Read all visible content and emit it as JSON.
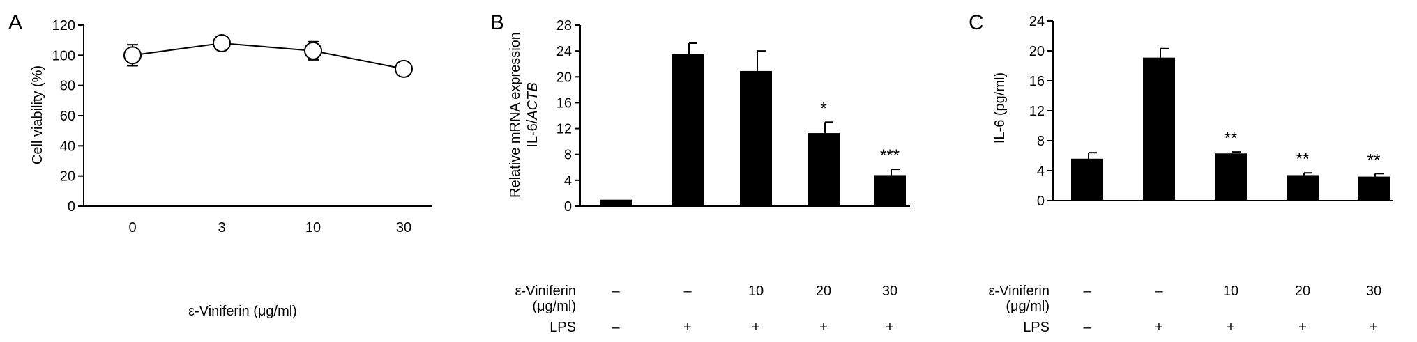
{
  "chart_data": [
    {
      "panel": "A",
      "type": "line",
      "categories": [
        "0",
        "3",
        "10",
        "30"
      ],
      "values": [
        100,
        108,
        103,
        91
      ],
      "errors": [
        7,
        0,
        6,
        0
      ],
      "ylabel": "Cell viability (%)",
      "xlabel": "ε-Viniferin (μg/ml)",
      "ylim": [
        0,
        120
      ],
      "yticks": [
        "0",
        "20",
        "40",
        "60",
        "80",
        "100",
        "120"
      ],
      "marker": "open-circle",
      "color": "#000000"
    },
    {
      "panel": "B",
      "type": "bar",
      "values": [
        1.0,
        23.5,
        20.9,
        11.3,
        4.8
      ],
      "errors": [
        0,
        1.7,
        3.1,
        1.7,
        0.9
      ],
      "annotations": [
        "",
        "",
        "",
        "*",
        "***"
      ],
      "ylabel_line1": "Relative mRNA expression",
      "ylabel_line2_prefix": "IL-6/",
      "ylabel_line2_italic": "ACTB",
      "ylim": [
        0,
        28
      ],
      "yticks": [
        "0",
        "4",
        "8",
        "12",
        "16",
        "20",
        "24",
        "28"
      ],
      "row1_label_line1": "ε-Viniferin",
      "row1_label_line2": "(μg/ml)",
      "row1_values": [
        "–",
        "–",
        "10",
        "20",
        "30"
      ],
      "row2_label": "LPS",
      "row2_values": [
        "–",
        "+",
        "+",
        "+",
        "+"
      ],
      "color": "#000000"
    },
    {
      "panel": "C",
      "type": "bar",
      "values": [
        5.6,
        19.1,
        6.3,
        3.4,
        3.2
      ],
      "errors": [
        0.8,
        1.2,
        0.2,
        0.3,
        0.4
      ],
      "annotations": [
        "",
        "",
        "**",
        "**",
        "**"
      ],
      "ylabel": "IL-6 (pg/ml)",
      "ylim": [
        0,
        24
      ],
      "yticks": [
        "0",
        "4",
        "8",
        "12",
        "16",
        "20",
        "24"
      ],
      "row1_label_line1": "ε-Viniferin",
      "row1_label_line2": "(μg/ml)",
      "row1_values": [
        "–",
        "–",
        "10",
        "20",
        "30"
      ],
      "row2_label": "LPS",
      "row2_values": [
        "–",
        "+",
        "+",
        "+",
        "+"
      ],
      "color": "#000000"
    }
  ],
  "panel_labels": [
    "A",
    "B",
    "C"
  ]
}
